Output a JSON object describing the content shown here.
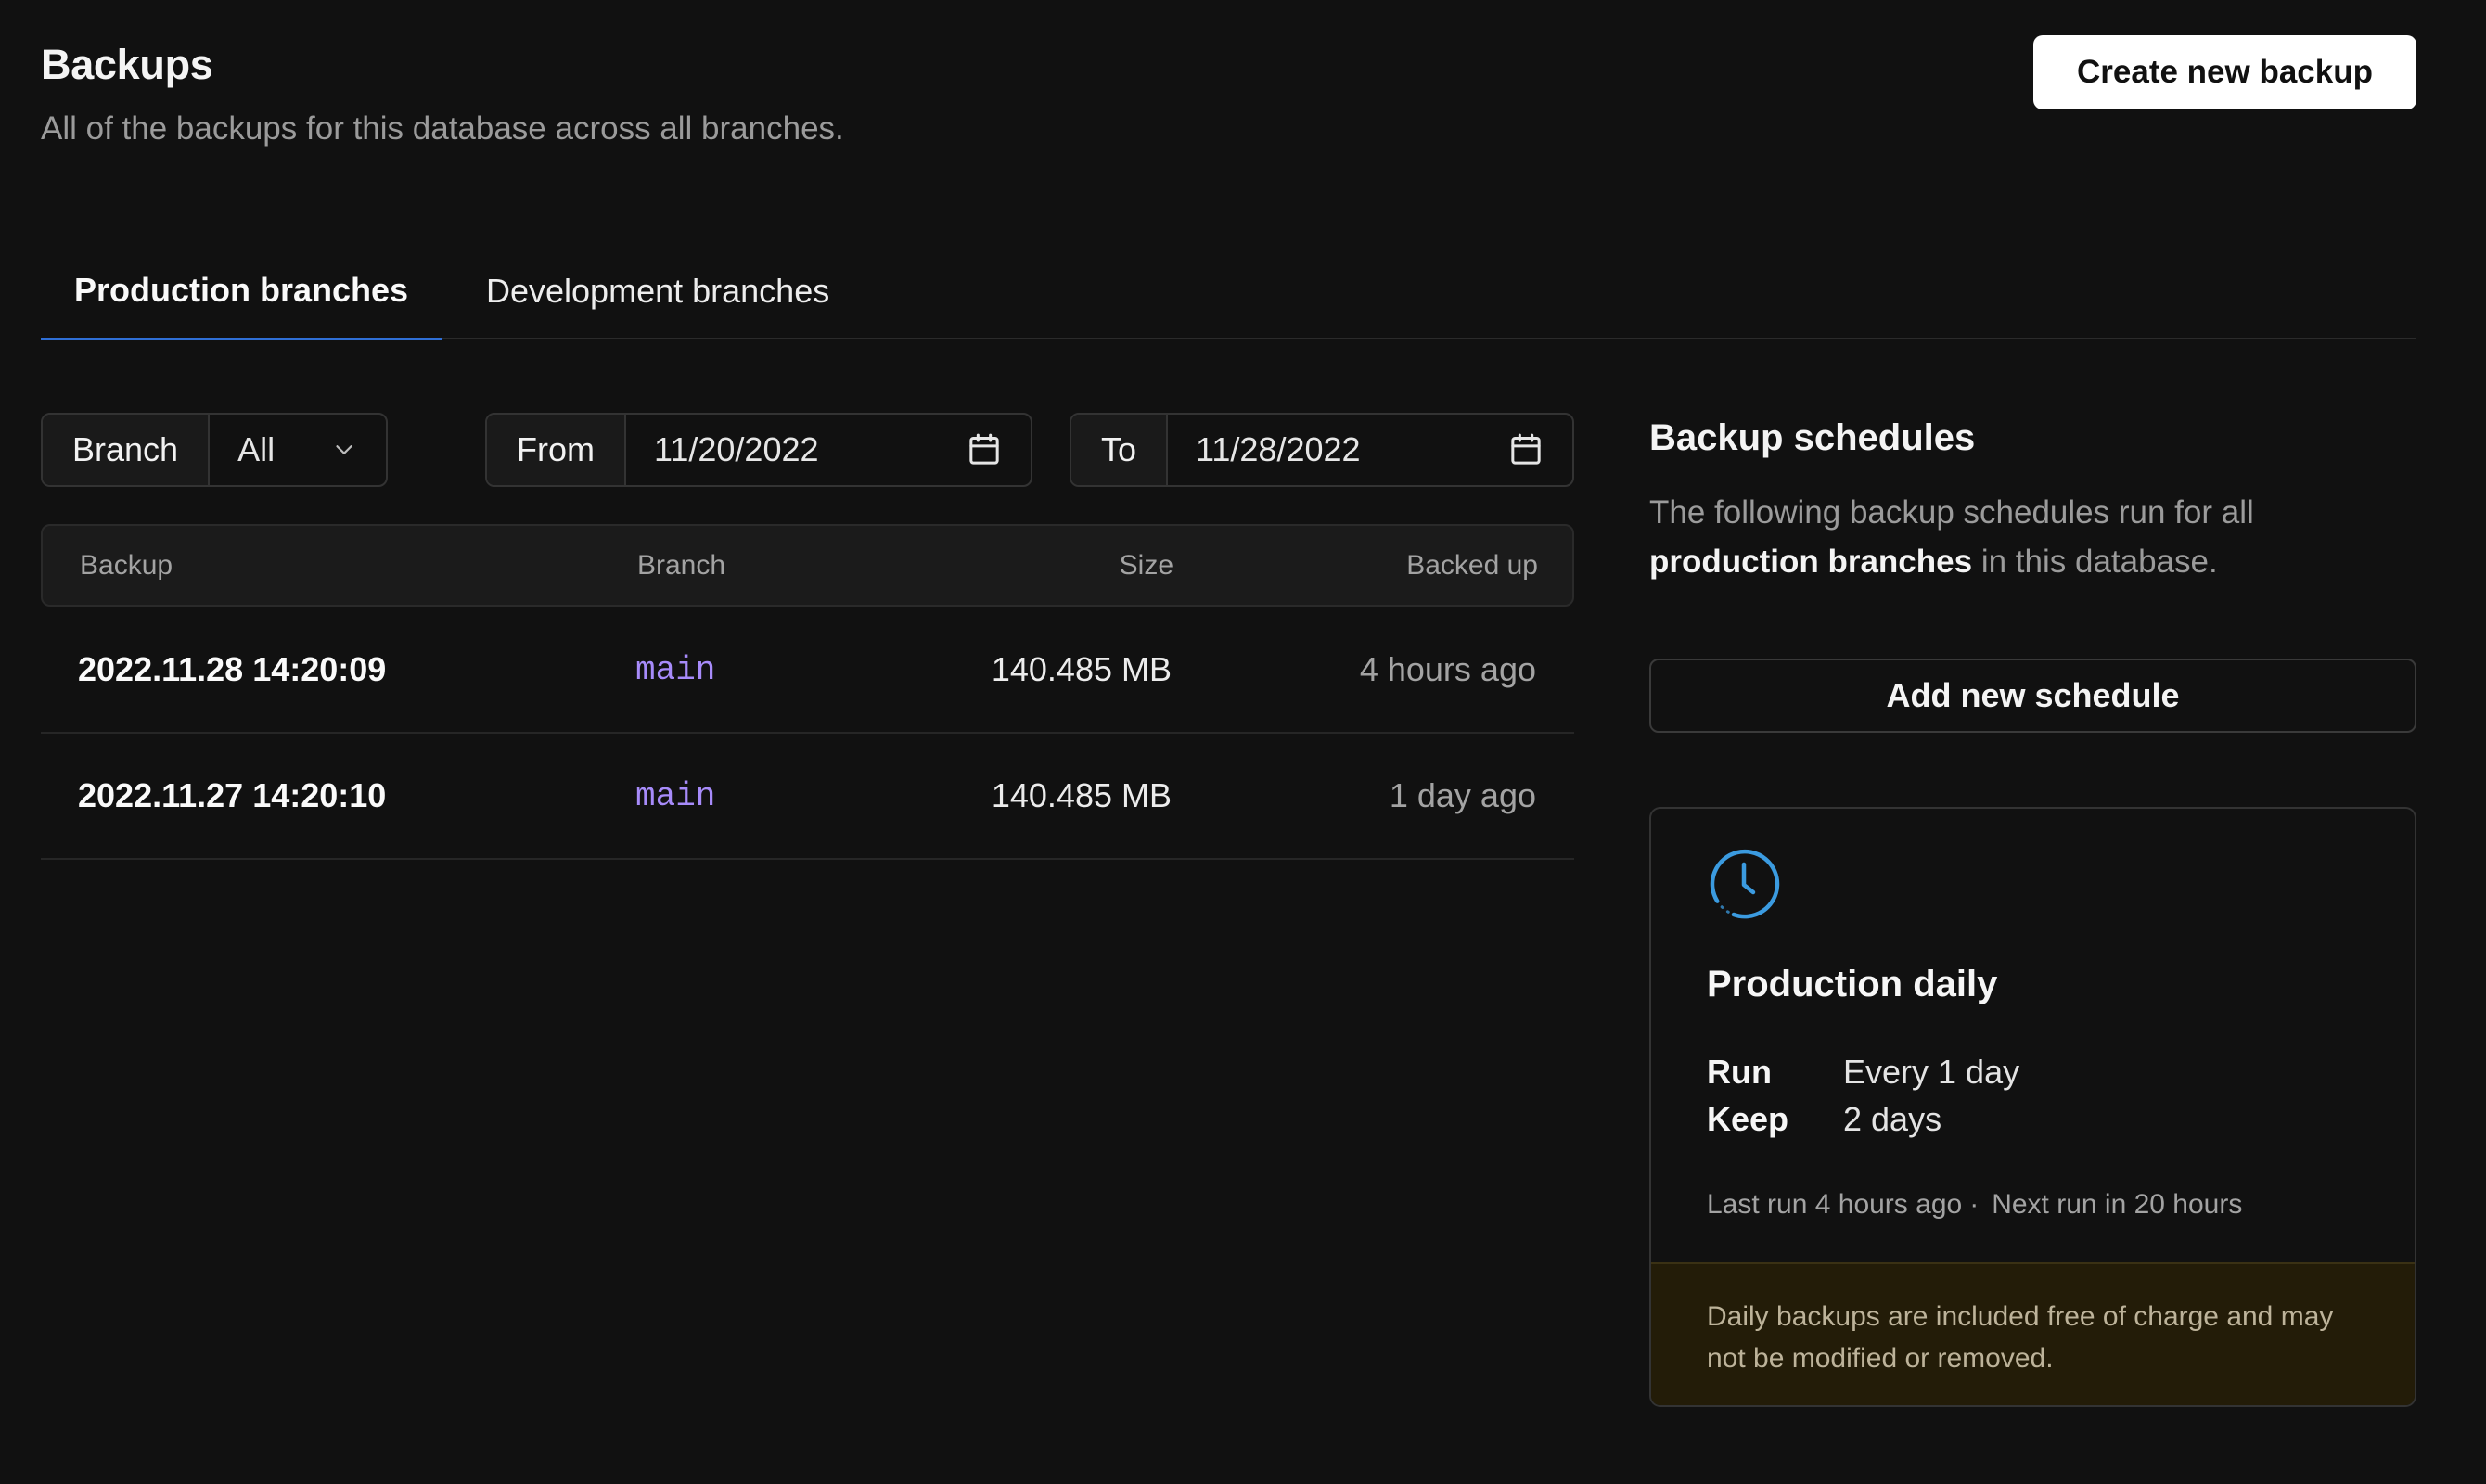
{
  "header": {
    "title": "Backups",
    "subtitle": "All of the backups for this database across all branches.",
    "create_button": "Create new backup"
  },
  "tabs": [
    {
      "label": "Production branches",
      "active": true
    },
    {
      "label": "Development branches",
      "active": false
    }
  ],
  "filters": {
    "branch": {
      "label": "Branch",
      "value": "All",
      "icon": "chevron-down-icon"
    },
    "from": {
      "label": "From",
      "value": "11/20/2022",
      "icon": "calendar-icon"
    },
    "to": {
      "label": "To",
      "value": "11/28/2022",
      "icon": "calendar-icon"
    }
  },
  "table": {
    "columns": [
      "Backup",
      "Branch",
      "Size",
      "Backed up"
    ],
    "rows": [
      {
        "backup": "2022.11.28 14:20:09",
        "branch": "main",
        "size": "140.485 MB",
        "backed_up": "4 hours ago"
      },
      {
        "backup": "2022.11.27 14:20:10",
        "branch": "main",
        "size": "140.485 MB",
        "backed_up": "1 day ago"
      }
    ]
  },
  "schedules": {
    "title": "Backup schedules",
    "desc_prefix": "The following backup schedules run for all ",
    "desc_bold": "production branches",
    "desc_suffix": " in this database.",
    "add_button": "Add new schedule",
    "card": {
      "icon": "clock-icon",
      "title": "Production daily",
      "run_label": "Run",
      "run_value": "Every 1 day",
      "keep_label": "Keep",
      "keep_value": "2 days",
      "last_run": "Last run 4 hours ago",
      "separator": "·",
      "next_run": "Next run in 20 hours",
      "note": "Daily backups are included free of charge and may not be modified or removed."
    }
  },
  "colors": {
    "background": "#111111",
    "accent": "#2f6fd6",
    "branch_text": "#a78bfa",
    "clock": "#3b9be0",
    "note_background": "#231c08"
  }
}
